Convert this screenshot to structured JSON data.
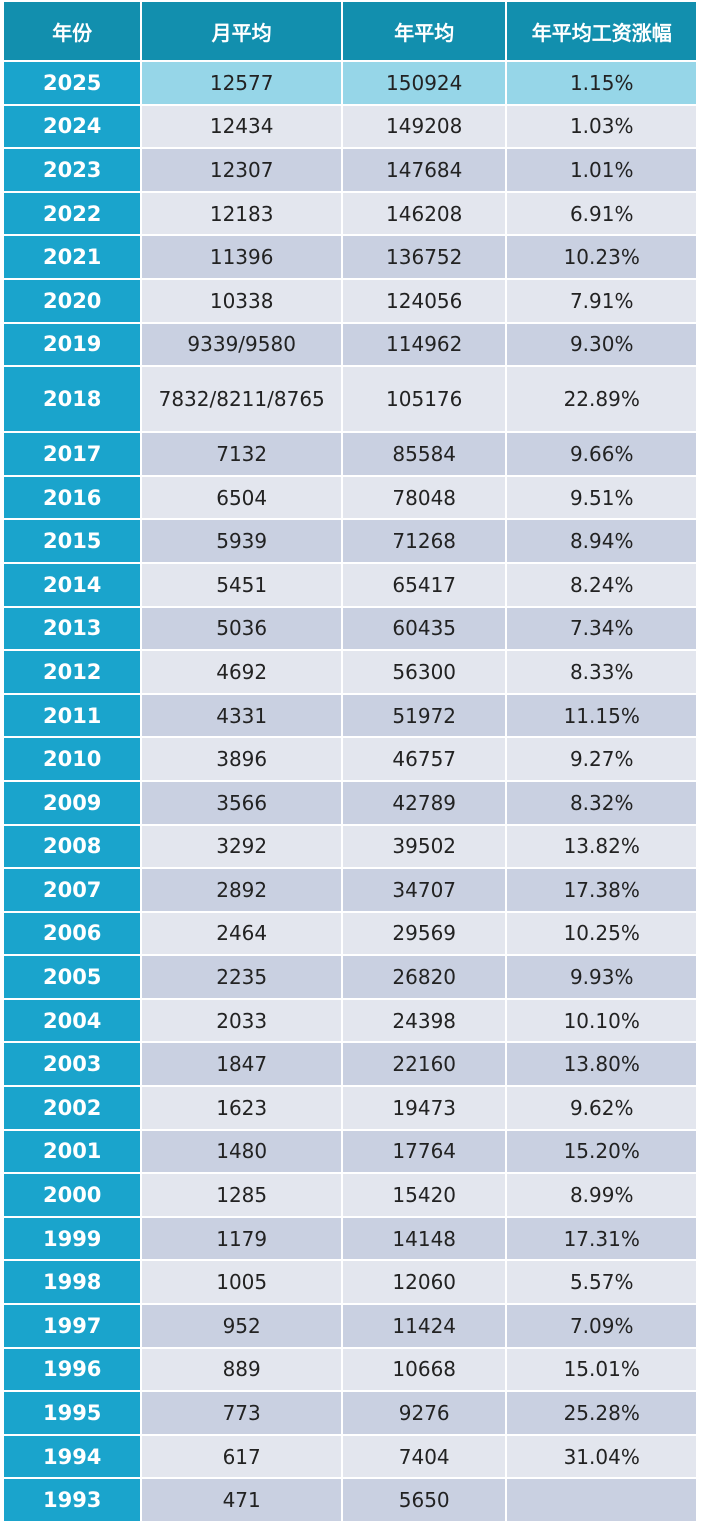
{
  "table": {
    "headers": [
      "年份",
      "月平均",
      "年平均",
      "年平均工资涨幅"
    ],
    "rows": [
      {
        "year": "2025",
        "monthly": "12577",
        "annual": "150924",
        "growth": "1.15%"
      },
      {
        "year": "2024",
        "monthly": "12434",
        "annual": "149208",
        "growth": "1.03%"
      },
      {
        "year": "2023",
        "monthly": "12307",
        "annual": "147684",
        "growth": "1.01%"
      },
      {
        "year": "2022",
        "monthly": "12183",
        "annual": "146208",
        "growth": "6.91%"
      },
      {
        "year": "2021",
        "monthly": "11396",
        "annual": "136752",
        "growth": "10.23%"
      },
      {
        "year": "2020",
        "monthly": "10338",
        "annual": "124056",
        "growth": "7.91%"
      },
      {
        "year": "2019",
        "monthly": "9339/9580",
        "annual": "114962",
        "growth": "9.30%"
      },
      {
        "year": "2018",
        "monthly": "7832/8211/8765",
        "annual": "105176",
        "growth": "22.89%"
      },
      {
        "year": "2017",
        "monthly": "7132",
        "annual": "85584",
        "growth": "9.66%"
      },
      {
        "year": "2016",
        "monthly": "6504",
        "annual": "78048",
        "growth": "9.51%"
      },
      {
        "year": "2015",
        "monthly": "5939",
        "annual": "71268",
        "growth": "8.94%"
      },
      {
        "year": "2014",
        "monthly": "5451",
        "annual": "65417",
        "growth": "8.24%"
      },
      {
        "year": "2013",
        "monthly": "5036",
        "annual": "60435",
        "growth": "7.34%"
      },
      {
        "year": "2012",
        "monthly": "4692",
        "annual": "56300",
        "growth": "8.33%"
      },
      {
        "year": "2011",
        "monthly": "4331",
        "annual": "51972",
        "growth": "11.15%"
      },
      {
        "year": "2010",
        "monthly": "3896",
        "annual": "46757",
        "growth": "9.27%"
      },
      {
        "year": "2009",
        "monthly": "3566",
        "annual": "42789",
        "growth": "8.32%"
      },
      {
        "year": "2008",
        "monthly": "3292",
        "annual": "39502",
        "growth": "13.82%"
      },
      {
        "year": "2007",
        "monthly": "2892",
        "annual": "34707",
        "growth": "17.38%"
      },
      {
        "year": "2006",
        "monthly": "2464",
        "annual": "29569",
        "growth": "10.25%"
      },
      {
        "year": "2005",
        "monthly": "2235",
        "annual": "26820",
        "growth": "9.93%"
      },
      {
        "year": "2004",
        "monthly": "2033",
        "annual": "24398",
        "growth": "10.10%"
      },
      {
        "year": "2003",
        "monthly": "1847",
        "annual": "22160",
        "growth": "13.80%"
      },
      {
        "year": "2002",
        "monthly": "1623",
        "annual": "19473",
        "growth": "9.62%"
      },
      {
        "year": "2001",
        "monthly": "1480",
        "annual": "17764",
        "growth": "15.20%"
      },
      {
        "year": "2000",
        "monthly": "1285",
        "annual": "15420",
        "growth": "8.99%"
      },
      {
        "year": "1999",
        "monthly": "1179",
        "annual": "14148",
        "growth": "17.31%"
      },
      {
        "year": "1998",
        "monthly": "1005",
        "annual": "12060",
        "growth": "5.57%"
      },
      {
        "year": "1997",
        "monthly": "952",
        "annual": "11424",
        "growth": "7.09%"
      },
      {
        "year": "1996",
        "monthly": "889",
        "annual": "10668",
        "growth": "15.01%"
      },
      {
        "year": "1995",
        "monthly": "773",
        "annual": "9276",
        "growth": "25.28%"
      },
      {
        "year": "1994",
        "monthly": "617",
        "annual": "7404",
        "growth": "31.04%"
      },
      {
        "year": "1993",
        "monthly": "471",
        "annual": "5650",
        "growth": ""
      }
    ]
  },
  "colors": {
    "header_bg": "#128fae",
    "year_col_bg": "#1aa4cc",
    "row_light": "#e3e6ee",
    "row_dark": "#c9d0e1",
    "row_highlight": "#96d6e8"
  }
}
